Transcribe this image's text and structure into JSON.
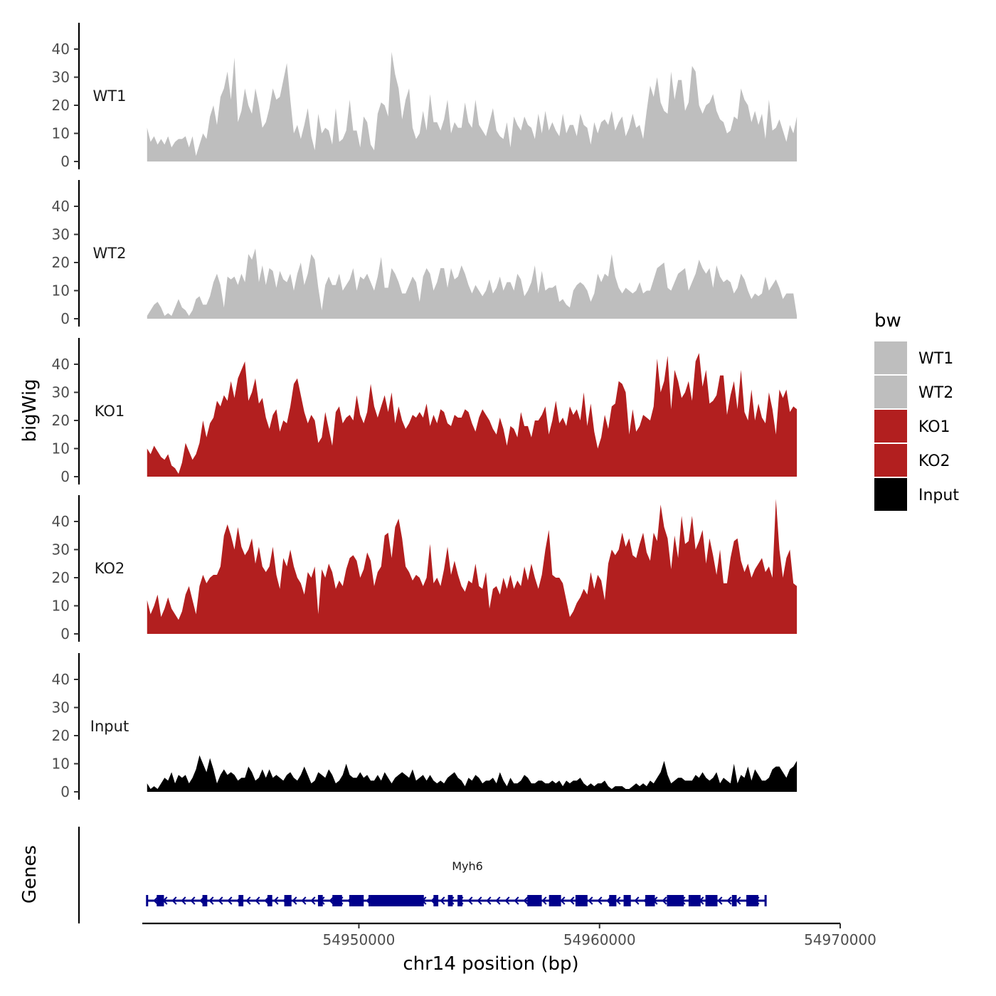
{
  "chart_data": {
    "type": "area",
    "title": "",
    "xlabel": "chr14 position (bp)",
    "ylabel": "bigWig",
    "genes_label": "Genes",
    "xlim": [
      54941000,
      54970000
    ],
    "data_x_range": [
      54941200,
      54968200
    ],
    "ylim": [
      0,
      50
    ],
    "yticks": [
      0,
      10,
      20,
      30,
      40
    ],
    "ytick_labels": [
      "0",
      "10",
      "20",
      "30",
      "40"
    ],
    "xticks": [
      54950000,
      54960000,
      54970000
    ],
    "xtick_labels": [
      "54950000",
      "54960000",
      "54970000"
    ],
    "legend": {
      "title": "bw",
      "position": "right",
      "entries": [
        {
          "label": "WT1",
          "color": "#bebebe"
        },
        {
          "label": "WT2",
          "color": "#bebebe"
        },
        {
          "label": "KO1",
          "color": "#b21f1f"
        },
        {
          "label": "KO2",
          "color": "#b21f1f"
        },
        {
          "label": "Input",
          "color": "#000000"
        }
      ]
    },
    "series": [
      {
        "name": "WT1",
        "color": "#bebebe",
        "values": [
          12,
          7,
          9,
          6,
          8,
          6,
          9,
          5,
          7,
          8,
          8,
          9,
          5,
          9,
          2,
          6,
          10,
          8,
          16,
          20,
          13,
          23,
          26,
          32,
          22,
          37,
          14,
          18,
          26,
          20,
          17,
          26,
          20,
          12,
          14,
          19,
          26,
          22,
          23,
          29,
          35,
          22,
          10,
          13,
          8,
          13,
          19,
          9,
          4,
          17,
          10,
          12,
          11,
          6,
          19,
          7,
          8,
          11,
          22,
          11,
          11,
          5,
          16,
          14,
          6,
          4,
          17,
          21,
          20,
          16,
          39,
          31,
          26,
          15,
          22,
          26,
          12,
          8,
          10,
          18,
          11,
          24,
          14,
          14,
          11,
          15,
          22,
          10,
          14,
          12,
          12,
          21,
          14,
          12,
          22,
          13,
          11,
          9,
          14,
          19,
          11,
          9,
          8,
          14,
          5,
          16,
          13,
          11,
          16,
          13,
          12,
          8,
          17,
          10,
          18,
          11,
          14,
          11,
          9,
          17,
          10,
          13,
          13,
          9,
          17,
          13,
          12,
          6,
          14,
          10,
          14,
          15,
          13,
          18,
          11,
          14,
          16,
          9,
          12,
          17,
          12,
          13,
          8,
          18,
          27,
          23,
          30,
          21,
          18,
          17,
          32,
          22,
          29,
          29,
          18,
          21,
          34,
          32,
          20,
          17,
          20,
          21,
          24,
          18,
          15,
          14,
          10,
          11,
          16,
          15,
          26,
          22,
          20,
          14,
          18,
          13,
          17,
          8,
          22,
          11,
          12,
          15,
          11,
          7,
          13,
          10,
          16
        ]
      },
      {
        "name": "WT2",
        "color": "#bebebe",
        "values": [
          1,
          3,
          5,
          6,
          4,
          1,
          2,
          1,
          4,
          7,
          4,
          3,
          1,
          3,
          7,
          8,
          5,
          5,
          8,
          13,
          16,
          12,
          4,
          15,
          14,
          15,
          12,
          16,
          13,
          23,
          21,
          25,
          13,
          19,
          12,
          18,
          17,
          11,
          17,
          14,
          13,
          16,
          10,
          16,
          20,
          12,
          16,
          23,
          21,
          11,
          3,
          12,
          15,
          12,
          12,
          16,
          10,
          12,
          14,
          18,
          10,
          15,
          14,
          16,
          13,
          10,
          15,
          22,
          11,
          11,
          18,
          16,
          13,
          9,
          9,
          12,
          15,
          13,
          6,
          15,
          18,
          16,
          10,
          13,
          18,
          18,
          11,
          18,
          14,
          15,
          19,
          16,
          12,
          9,
          12,
          10,
          8,
          10,
          14,
          9,
          11,
          15,
          10,
          13,
          13,
          10,
          16,
          14,
          8,
          10,
          13,
          19,
          9,
          17,
          10,
          11,
          11,
          12,
          6,
          7,
          5,
          4,
          10,
          12,
          13,
          12,
          10,
          6,
          9,
          16,
          13,
          16,
          15,
          23,
          15,
          11,
          9,
          11,
          10,
          9,
          10,
          13,
          9,
          10,
          10,
          14,
          18,
          19,
          20,
          11,
          10,
          13,
          16,
          17,
          18,
          10,
          13,
          16,
          21,
          18,
          16,
          18,
          11,
          19,
          15,
          13,
          14,
          13,
          9,
          11,
          16,
          14,
          10,
          7,
          9,
          8,
          9,
          15,
          10,
          12,
          14,
          11,
          7,
          9,
          9,
          9,
          1
        ]
      },
      {
        "name": "KO1",
        "color": "#b21f1f",
        "values": [
          10,
          8,
          11,
          9,
          7,
          6,
          8,
          4,
          3,
          1,
          5,
          12,
          9,
          6,
          8,
          12,
          20,
          14,
          19,
          21,
          27,
          25,
          29,
          27,
          34,
          28,
          35,
          38,
          41,
          27,
          30,
          35,
          26,
          28,
          21,
          17,
          22,
          24,
          16,
          20,
          19,
          25,
          33,
          35,
          29,
          23,
          19,
          22,
          20,
          12,
          14,
          23,
          17,
          11,
          23,
          25,
          19,
          21,
          22,
          20,
          29,
          22,
          19,
          23,
          33,
          25,
          21,
          25,
          29,
          23,
          30,
          19,
          25,
          20,
          17,
          19,
          22,
          21,
          23,
          21,
          26,
          18,
          22,
          19,
          24,
          23,
          19,
          18,
          22,
          21,
          21,
          24,
          23,
          19,
          16,
          21,
          24,
          22,
          20,
          17,
          15,
          21,
          17,
          11,
          18,
          17,
          14,
          23,
          18,
          18,
          14,
          20,
          20,
          22,
          25,
          15,
          20,
          27,
          19,
          21,
          18,
          25,
          22,
          24,
          20,
          30,
          18,
          26,
          16,
          10,
          14,
          22,
          17,
          25,
          26,
          34,
          33,
          30,
          15,
          24,
          16,
          18,
          22,
          21,
          20,
          25,
          42,
          30,
          34,
          43,
          24,
          38,
          34,
          28,
          30,
          34,
          27,
          41,
          44,
          32,
          38,
          26,
          27,
          29,
          36,
          36,
          22,
          29,
          34,
          24,
          38,
          23,
          20,
          31,
          20,
          26,
          21,
          19,
          30,
          24,
          15,
          31,
          28,
          31,
          23,
          25,
          24
        ]
      },
      {
        "name": "KO2",
        "color": "#b21f1f",
        "values": [
          12,
          7,
          10,
          14,
          6,
          9,
          13,
          9,
          7,
          5,
          8,
          14,
          17,
          12,
          7,
          17,
          21,
          18,
          20,
          21,
          21,
          24,
          35,
          39,
          35,
          30,
          38,
          31,
          28,
          30,
          34,
          25,
          31,
          24,
          22,
          24,
          31,
          21,
          16,
          27,
          24,
          30,
          24,
          20,
          18,
          14,
          22,
          20,
          24,
          7,
          23,
          20,
          25,
          22,
          16,
          19,
          17,
          23,
          27,
          28,
          26,
          20,
          23,
          29,
          26,
          17,
          22,
          24,
          35,
          36,
          27,
          38,
          41,
          34,
          24,
          22,
          19,
          21,
          20,
          17,
          20,
          32,
          18,
          20,
          17,
          23,
          31,
          21,
          26,
          21,
          17,
          15,
          19,
          18,
          25,
          17,
          16,
          22,
          9,
          16,
          17,
          14,
          20,
          16,
          21,
          16,
          19,
          17,
          24,
          19,
          25,
          20,
          16,
          21,
          30,
          37,
          21,
          20,
          20,
          18,
          12,
          6,
          8,
          11,
          13,
          16,
          14,
          22,
          16,
          21,
          19,
          12,
          25,
          30,
          28,
          30,
          36,
          31,
          34,
          28,
          27,
          32,
          36,
          29,
          26,
          36,
          33,
          46,
          38,
          34,
          23,
          35,
          27,
          42,
          32,
          33,
          42,
          30,
          33,
          37,
          25,
          34,
          28,
          21,
          30,
          18,
          18,
          27,
          33,
          34,
          26,
          22,
          25,
          20,
          23,
          25,
          27,
          22,
          24,
          20,
          48,
          30,
          20,
          27,
          30,
          18,
          17
        ]
      },
      {
        "name": "Input",
        "color": "#000000",
        "values": [
          3,
          1,
          2,
          1,
          3,
          5,
          4,
          7,
          3,
          6,
          5,
          6,
          3,
          5,
          8,
          13,
          10,
          7,
          12,
          8,
          3,
          6,
          8,
          6,
          7,
          6,
          4,
          5,
          5,
          9,
          7,
          4,
          5,
          8,
          5,
          8,
          5,
          6,
          5,
          4,
          6,
          7,
          5,
          4,
          6,
          9,
          6,
          3,
          4,
          7,
          6,
          5,
          8,
          6,
          3,
          4,
          6,
          10,
          6,
          5,
          5,
          7,
          5,
          6,
          4,
          4,
          6,
          4,
          7,
          5,
          3,
          5,
          6,
          7,
          6,
          5,
          8,
          4,
          5,
          6,
          4,
          6,
          4,
          3,
          4,
          3,
          5,
          6,
          7,
          5,
          4,
          2,
          5,
          4,
          6,
          5,
          3,
          4,
          4,
          5,
          3,
          7,
          4,
          2,
          5,
          3,
          3,
          4,
          6,
          5,
          3,
          3,
          4,
          4,
          3,
          3,
          4,
          3,
          4,
          2,
          4,
          3,
          4,
          4,
          5,
          3,
          2,
          3,
          2,
          3,
          3,
          4,
          2,
          1,
          2,
          2,
          2,
          1,
          1,
          2,
          3,
          2,
          3,
          2,
          4,
          3,
          5,
          7,
          11,
          6,
          3,
          4,
          5,
          5,
          4,
          4,
          4,
          6,
          5,
          7,
          5,
          4,
          5,
          7,
          3,
          5,
          4,
          3,
          10,
          3,
          6,
          5,
          9,
          4,
          8,
          6,
          4,
          4,
          5,
          8,
          9,
          9,
          7,
          5,
          8,
          9,
          11
        ]
      }
    ],
    "genes": {
      "name": "Myh6",
      "strand": "-",
      "start": 54941200,
      "end": 54966900,
      "exons": [
        54941600,
        54941900,
        54943500,
        54943700,
        54945000,
        54945200,
        54946200,
        54946400,
        54946900,
        54947200,
        54948300,
        54948500,
        54948900,
        54949300,
        54949600,
        54950200,
        54950400,
        54952700,
        54953100,
        54953300,
        54953700,
        54953900,
        54954100,
        54954300,
        54957000,
        54957600,
        54957900,
        54958400,
        54959000,
        54959500,
        54960400,
        54960700,
        54961000,
        54961300,
        54961900,
        54962300,
        54962800,
        54963500,
        54963700,
        54964200,
        54964400,
        54964900,
        54965500,
        54965700,
        54966100,
        54966600
      ]
    }
  }
}
